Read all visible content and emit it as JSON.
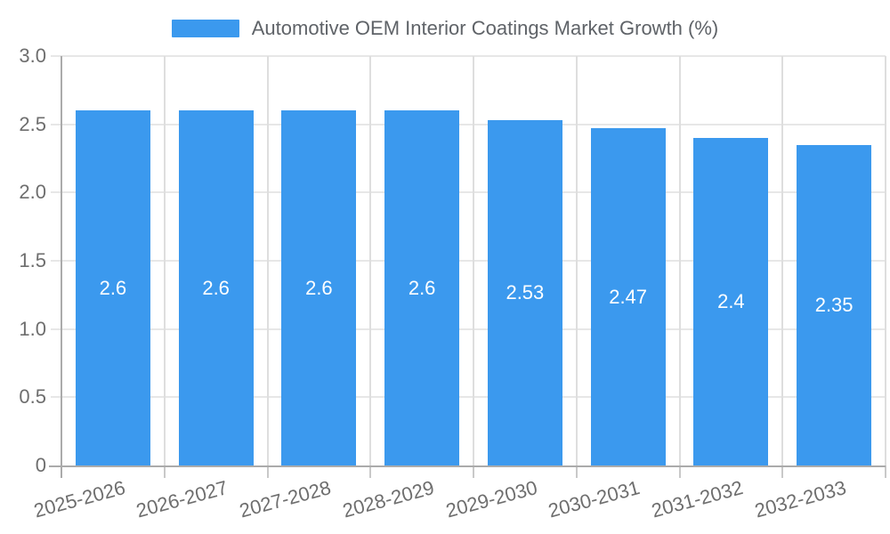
{
  "chart_data": {
    "type": "bar",
    "title": "Automotive OEM Interior Coatings Market Growth (%)",
    "categories": [
      "2025-2026",
      "2026-2027",
      "2027-2028",
      "2028-2029",
      "2029-2030",
      "2030-2031",
      "2031-2032",
      "2032-2033"
    ],
    "values": [
      2.6,
      2.6,
      2.6,
      2.6,
      2.53,
      2.47,
      2.4,
      2.35
    ],
    "bar_value_labels": [
      "2.6",
      "2.6",
      "2.6",
      "2.6",
      "2.53",
      "2.47",
      "2.4",
      "2.35"
    ],
    "xlabel": "",
    "ylabel": "",
    "ylim": [
      0,
      3
    ],
    "ytick_values": [
      0,
      0.5,
      1,
      1.5,
      2,
      2.5,
      3
    ],
    "ytick_labels": [
      "0",
      "0.5",
      "1.0",
      "1.5",
      "2.0",
      "2.5",
      "3.0"
    ],
    "grid": true,
    "legend_position": "top-center",
    "x_tick_label_rotation_deg": -15,
    "colors": {
      "bar": "#3B99EE",
      "bar_value_label": "#FFFFFF",
      "axis_line": "#ABABAB",
      "gridline_h": "#E7E7E7",
      "gridline_v": "#DEDEDE",
      "tick": "#C9C9C9",
      "tick_label": "#6E6E6E",
      "legend_text": "#5F6368",
      "background": "#FFFFFF"
    }
  }
}
